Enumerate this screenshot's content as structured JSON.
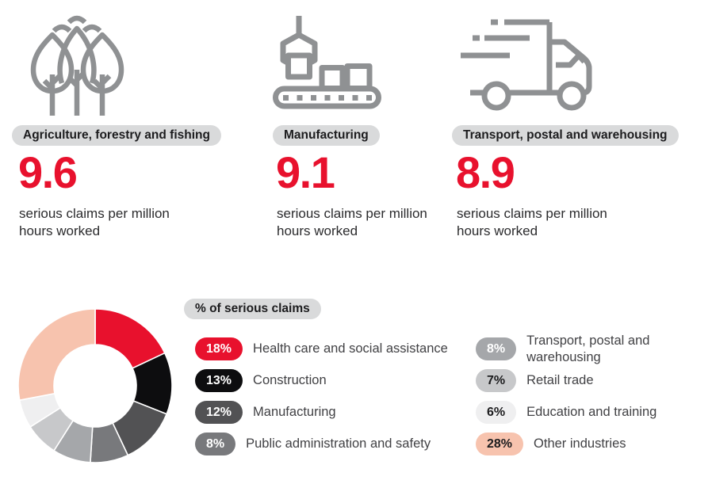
{
  "colors": {
    "accent_red": "#E8112D",
    "icon_gray": "#8F9193",
    "pill_bg": "#D9DADB",
    "body_text": "#2B2B2D",
    "legend_text": "#414144"
  },
  "header_cards": [
    {
      "icon": "trees-icon",
      "industry": "Agriculture, forestry and fishing",
      "value": "9.6",
      "unit": "serious claims per million hours worked"
    },
    {
      "icon": "conveyor-icon",
      "industry": "Manufacturing",
      "value": "9.1",
      "unit": "serious claims per million hours worked"
    },
    {
      "icon": "truck-icon",
      "industry": "Transport, postal and warehousing",
      "value": "8.9",
      "unit": "serious claims per million hours worked"
    }
  ],
  "chart_data": {
    "type": "pie",
    "subtype": "donut",
    "title": "% of serious claims",
    "start_angle_deg": 0,
    "direction": "clockwise",
    "legend_position": "right",
    "legend_columns": 2,
    "slices": [
      {
        "label": "Health care and social assistance",
        "value": 18,
        "pct_label": "18%",
        "color": "#E8112D",
        "label_text_color": "#FFFFFF"
      },
      {
        "label": "Construction",
        "value": 13,
        "pct_label": "13%",
        "color": "#0D0D0F",
        "label_text_color": "#FFFFFF"
      },
      {
        "label": "Manufacturing",
        "value": 12,
        "pct_label": "12%",
        "color": "#525254",
        "label_text_color": "#FFFFFF"
      },
      {
        "label": "Public administration and safety",
        "value": 8,
        "pct_label": "8%",
        "color": "#78797C",
        "label_text_color": "#FFFFFF"
      },
      {
        "label": "Transport, postal and warehousing",
        "value": 8,
        "pct_label": "8%",
        "color": "#A5A7AA",
        "label_text_color": "#FFFFFF"
      },
      {
        "label": "Retail trade",
        "value": 7,
        "pct_label": "7%",
        "color": "#C7C8CA",
        "label_text_color": "#1C1C1E"
      },
      {
        "label": "Education and training",
        "value": 6,
        "pct_label": "6%",
        "color": "#EFEFF0",
        "label_text_color": "#1C1C1E"
      },
      {
        "label": "Other industries",
        "value": 28,
        "pct_label": "28%",
        "color": "#F7C3AE",
        "label_text_color": "#1C1C1E"
      }
    ]
  }
}
